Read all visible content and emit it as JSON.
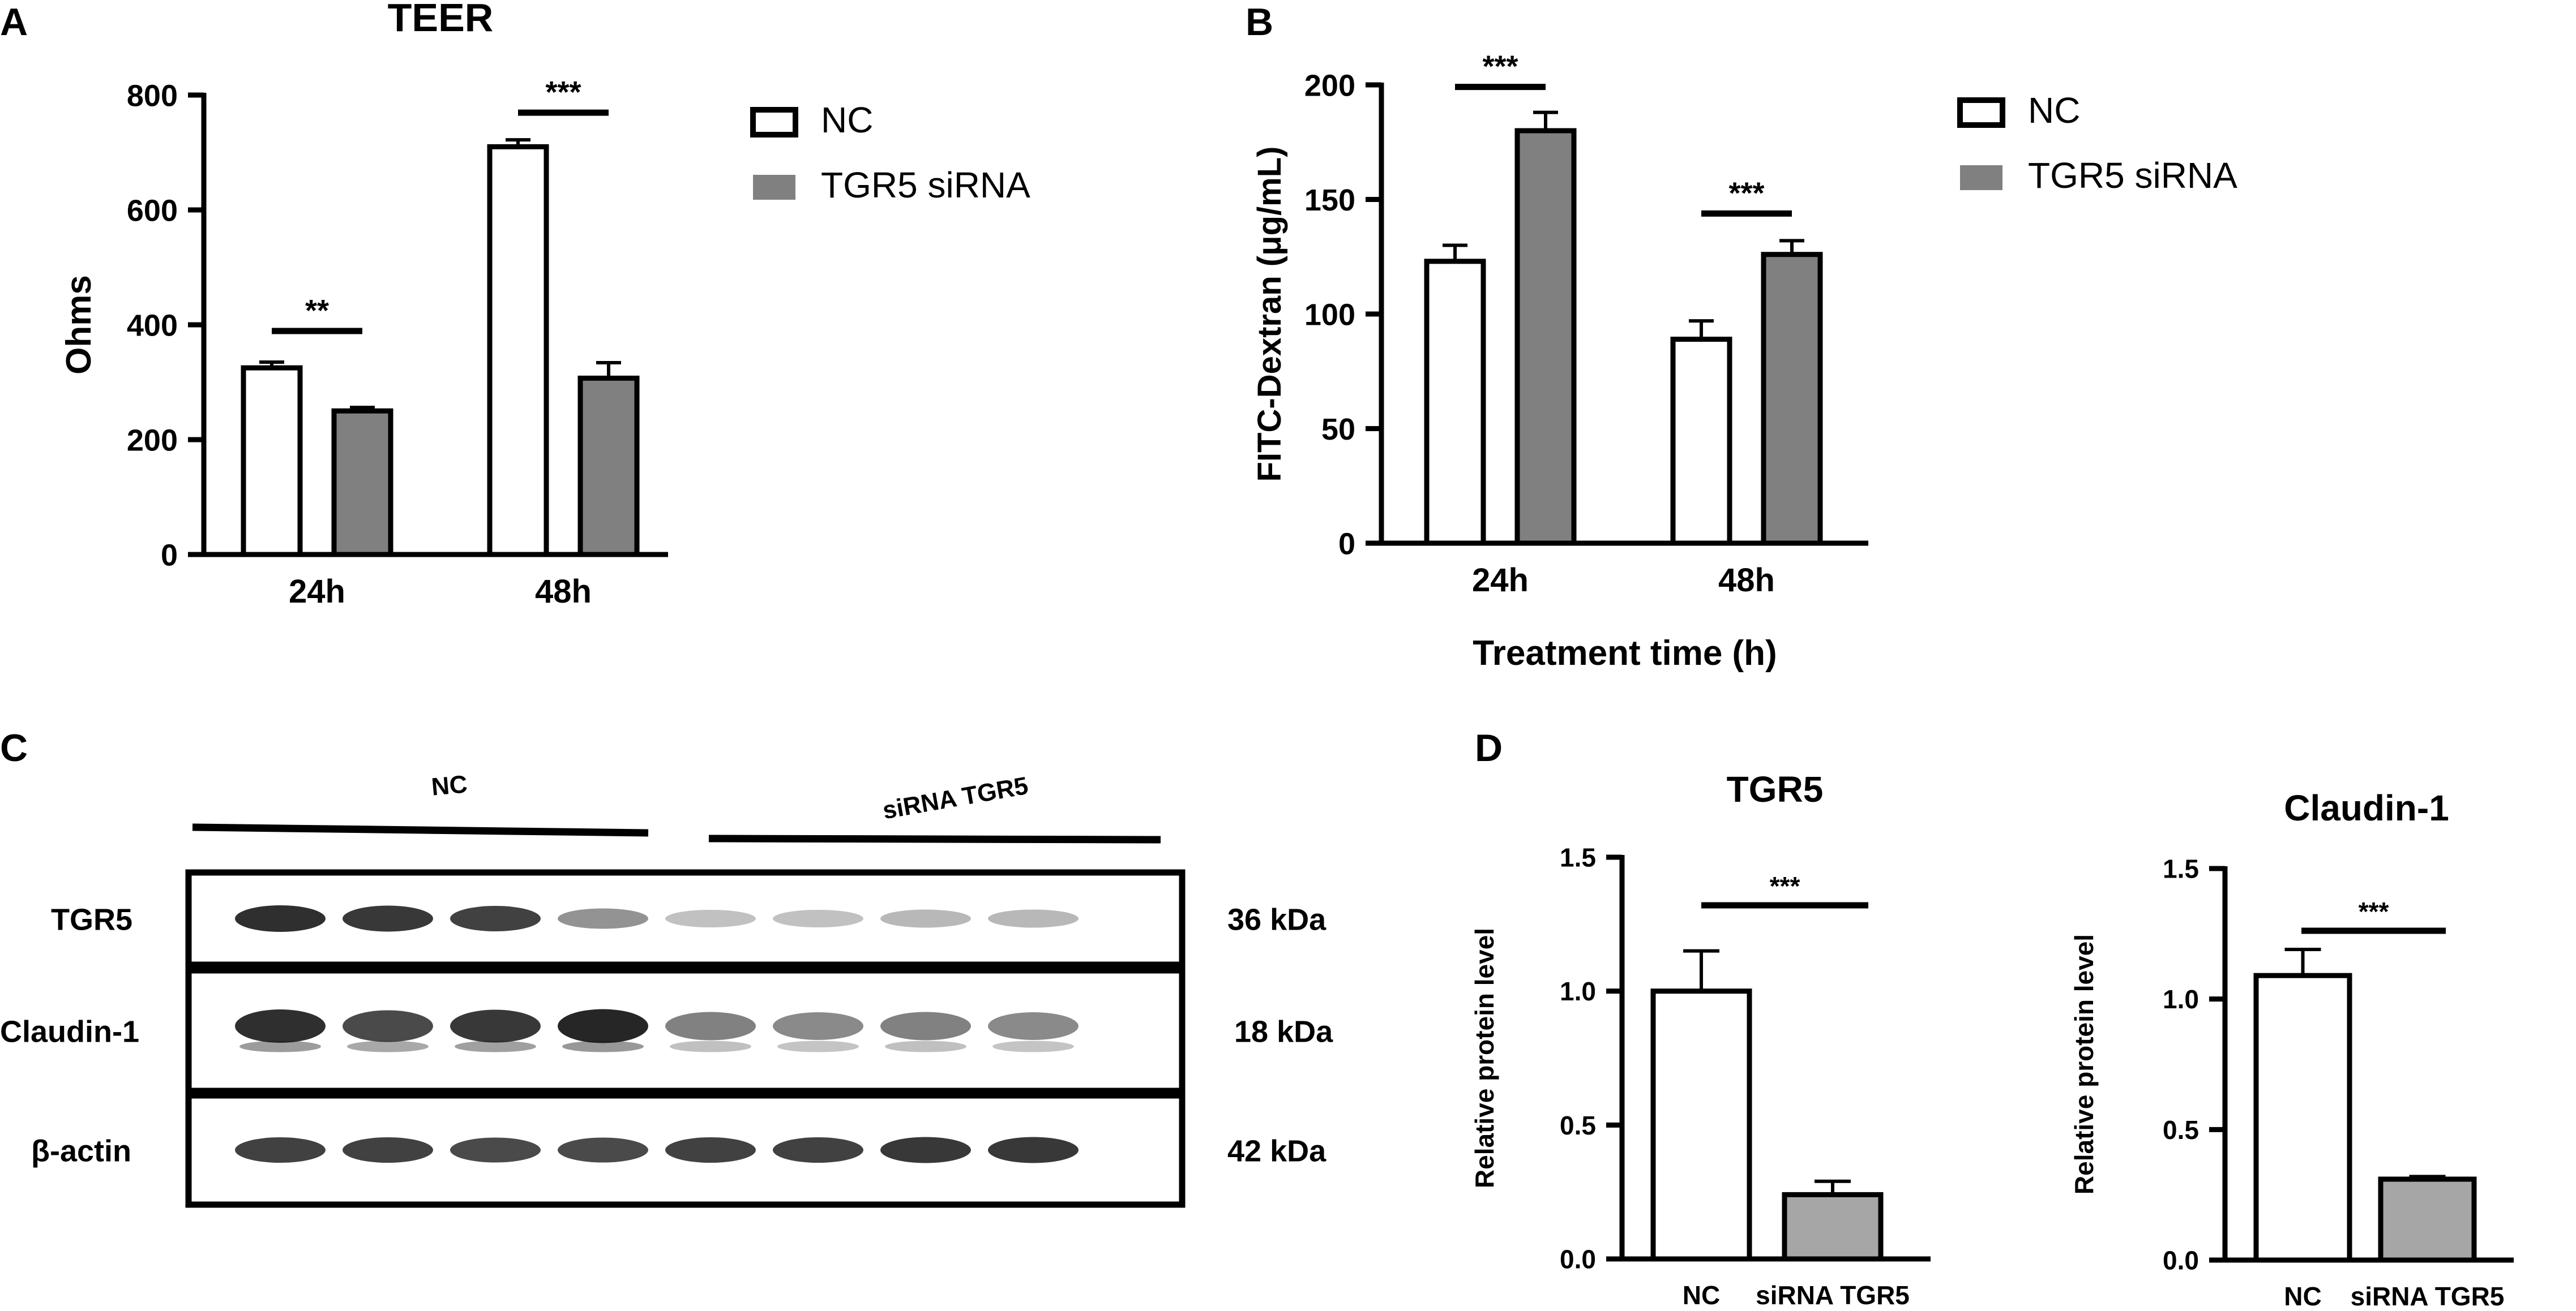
{
  "panels": {
    "A": "A",
    "B": "B",
    "C": "C",
    "D": "D"
  },
  "colors": {
    "nc_fill": "#ffffff",
    "sirna_fill": "#808080",
    "sirna_fill_d": "#a6a6a6",
    "axis": "#000000",
    "blot_bg": "#ffffff",
    "band": "#1a1a1a"
  },
  "chart_data": [
    {
      "id": "A",
      "type": "bar",
      "title": "TEER",
      "xlabel": "",
      "ylabel": "Ohms",
      "ylim": [
        0,
        800
      ],
      "yticks": [
        "0",
        "200",
        "400",
        "600",
        "800"
      ],
      "categories": [
        "24h",
        "48h"
      ],
      "series": [
        {
          "name": "NC",
          "values": [
            325,
            710
          ],
          "errors": [
            10,
            12
          ]
        },
        {
          "name": "TGR5 siRNA",
          "values": [
            250,
            307
          ],
          "errors": [
            6,
            27
          ]
        }
      ],
      "significance": [
        "**",
        "***"
      ],
      "legend": "right"
    },
    {
      "id": "B",
      "type": "bar",
      "title": "",
      "xlabel": "Treatment time (h)",
      "ylabel": "FITC-Dextran (μg/mL)",
      "ylim": [
        0,
        200
      ],
      "yticks": [
        "0",
        "50",
        "100",
        "150",
        "200"
      ],
      "categories": [
        "24h",
        "48h"
      ],
      "series": [
        {
          "name": "NC",
          "values": [
            123,
            89
          ],
          "errors": [
            7,
            8
          ]
        },
        {
          "name": "TGR5 siRNA",
          "values": [
            180,
            126
          ],
          "errors": [
            8,
            6
          ]
        }
      ],
      "significance": [
        "***",
        "***"
      ],
      "legend": "right"
    },
    {
      "id": "D1",
      "type": "bar",
      "title": "TGR5",
      "xlabel": "",
      "ylabel": "Relative protein level",
      "ylim": [
        0,
        1.5
      ],
      "yticks": [
        "0.0",
        "0.5",
        "1.0",
        "1.5"
      ],
      "categories": [
        "NC",
        "siRNA TGR5"
      ],
      "values": [
        1.0,
        0.24
      ],
      "errors": [
        0.15,
        0.05
      ],
      "significance": [
        "***"
      ]
    },
    {
      "id": "D2",
      "type": "bar",
      "title": "Claudin-1",
      "xlabel": "",
      "ylabel": "Relative protein level",
      "ylim": [
        0,
        1.5
      ],
      "yticks": [
        "0.0",
        "0.5",
        "1.0",
        "1.5"
      ],
      "categories": [
        "NC",
        "siRNA TGR5"
      ],
      "values": [
        1.09,
        0.31
      ],
      "errors": [
        0.1,
        0.01
      ],
      "significance": [
        "***"
      ]
    }
  ],
  "blot": {
    "groups": [
      "NC",
      "siRNA TGR5"
    ],
    "rows": [
      {
        "label": "TGR5",
        "size": "36 kDa",
        "intensities": [
          0.95,
          0.9,
          0.85,
          0.4,
          0.15,
          0.15,
          0.2,
          0.2
        ]
      },
      {
        "label": "Claudin-1",
        "size": "18 kDa",
        "intensities": [
          0.95,
          0.8,
          0.9,
          1.0,
          0.5,
          0.45,
          0.5,
          0.45
        ]
      },
      {
        "label": "β-actin",
        "size": "42 kDa",
        "intensities": [
          0.85,
          0.85,
          0.8,
          0.8,
          0.85,
          0.85,
          0.9,
          0.9
        ]
      }
    ]
  }
}
